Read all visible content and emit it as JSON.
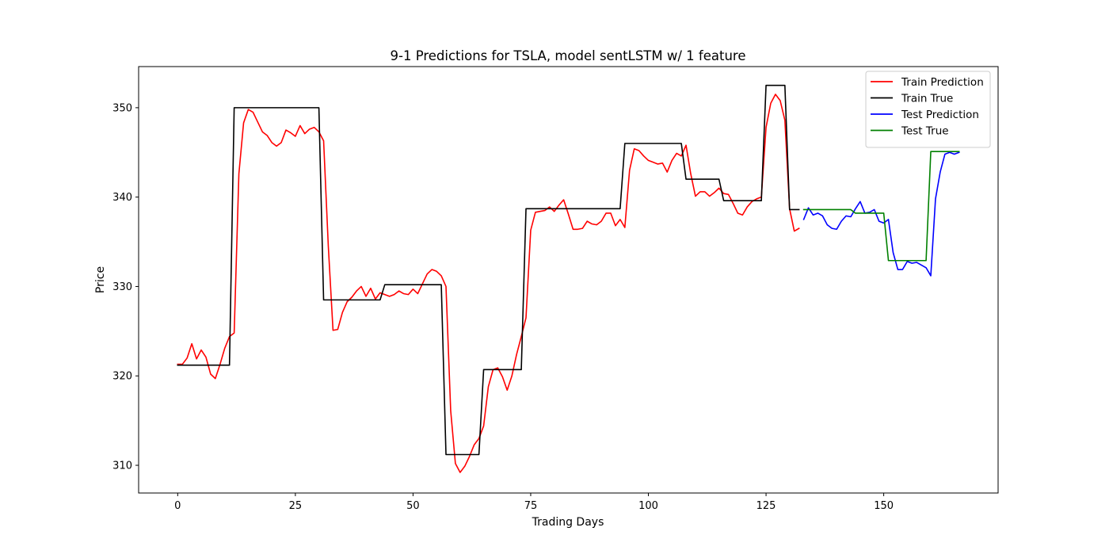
{
  "chart_data": {
    "type": "line",
    "title": "9-1 Predictions for TSLA, model sentLSTM w/ 1 feature",
    "xlabel": "Trading Days",
    "ylabel": "Price",
    "xlim": [
      -8.3,
      174.3
    ],
    "ylim": [
      306.9,
      354.6
    ],
    "xticks": [
      0,
      25,
      50,
      75,
      100,
      125,
      150
    ],
    "yticks": [
      310,
      320,
      330,
      340,
      350
    ],
    "grid": false,
    "legend_position": "top-right",
    "series": [
      {
        "name": "Train Prediction",
        "color": "#ff0000",
        "x_start": 0,
        "values": [
          321.3,
          321.3,
          322.0,
          323.6,
          321.9,
          322.9,
          322.1,
          320.2,
          319.7,
          321.3,
          323.1,
          324.4,
          324.8,
          342.6,
          348.3,
          349.8,
          349.5,
          348.4,
          347.3,
          346.9,
          346.1,
          345.7,
          346.1,
          347.5,
          347.2,
          346.8,
          348.0,
          347.1,
          347.6,
          347.8,
          347.3,
          346.3,
          334.5,
          325.1,
          325.2,
          327.1,
          328.3,
          328.8,
          329.5,
          330.0,
          328.9,
          329.8,
          328.6,
          329.3,
          329.1,
          328.9,
          329.1,
          329.5,
          329.2,
          329.1,
          329.7,
          329.2,
          330.3,
          331.4,
          331.9,
          331.7,
          331.2,
          330.0,
          316.1,
          310.2,
          309.2,
          309.9,
          311.0,
          312.3,
          313.0,
          314.4,
          318.8,
          320.7,
          320.9,
          319.9,
          318.4,
          320.0,
          322.4,
          324.4,
          326.5,
          336.3,
          338.3,
          338.4,
          338.5,
          338.9,
          338.4,
          339.1,
          339.7,
          338.1,
          336.4,
          336.4,
          336.5,
          337.3,
          337.0,
          336.9,
          337.3,
          338.2,
          338.2,
          336.8,
          337.5,
          336.6,
          343.0,
          345.4,
          345.2,
          344.6,
          344.1,
          343.9,
          343.7,
          343.8,
          342.8,
          344.1,
          344.9,
          344.6,
          345.8,
          342.6,
          340.1,
          340.6,
          340.6,
          340.1,
          340.5,
          341.0,
          340.4,
          340.3,
          339.3,
          338.2,
          338.0,
          338.9,
          339.5,
          339.8,
          340.0,
          347.8,
          350.5,
          351.5,
          350.8,
          348.6,
          338.7,
          336.2,
          336.5
        ]
      },
      {
        "name": "Train True",
        "color": "#000000",
        "x_start": 0,
        "values": [
          321.2,
          321.2,
          321.2,
          321.2,
          321.2,
          321.2,
          321.2,
          321.2,
          321.2,
          321.2,
          321.2,
          321.2,
          350.0,
          350.0,
          350.0,
          350.0,
          350.0,
          350.0,
          350.0,
          350.0,
          350.0,
          350.0,
          350.0,
          350.0,
          350.0,
          350.0,
          350.0,
          350.0,
          350.0,
          350.0,
          350.0,
          328.5,
          328.5,
          328.5,
          328.5,
          328.5,
          328.5,
          328.5,
          328.5,
          328.5,
          328.5,
          328.5,
          328.5,
          328.5,
          330.2,
          330.2,
          330.2,
          330.2,
          330.2,
          330.2,
          330.2,
          330.2,
          330.2,
          330.2,
          330.2,
          330.2,
          330.2,
          311.2,
          311.2,
          311.2,
          311.2,
          311.2,
          311.2,
          311.2,
          311.2,
          320.7,
          320.7,
          320.7,
          320.7,
          320.7,
          320.7,
          320.7,
          320.7,
          320.7,
          338.7,
          338.7,
          338.7,
          338.7,
          338.7,
          338.7,
          338.7,
          338.7,
          338.7,
          338.7,
          338.7,
          338.7,
          338.7,
          338.7,
          338.7,
          338.7,
          338.7,
          338.7,
          338.7,
          338.7,
          338.7,
          346.0,
          346.0,
          346.0,
          346.0,
          346.0,
          346.0,
          346.0,
          346.0,
          346.0,
          346.0,
          346.0,
          346.0,
          346.0,
          342.0,
          342.0,
          342.0,
          342.0,
          342.0,
          342.0,
          342.0,
          342.0,
          339.6,
          339.6,
          339.6,
          339.6,
          339.6,
          339.6,
          339.6,
          339.6,
          339.6,
          352.5,
          352.5,
          352.5,
          352.5,
          352.5,
          338.6,
          338.6,
          338.6
        ]
      },
      {
        "name": "Test Prediction",
        "color": "#0000ff",
        "x_start": 133,
        "values": [
          337.5,
          338.8,
          338.0,
          338.2,
          337.9,
          336.9,
          336.5,
          336.4,
          337.3,
          337.9,
          337.8,
          338.7,
          339.5,
          338.2,
          338.3,
          338.6,
          337.3,
          337.1,
          337.5,
          333.8,
          331.9,
          331.9,
          332.8,
          332.6,
          332.7,
          332.4,
          332.1,
          331.2,
          339.8,
          342.8,
          344.8,
          345.0,
          344.8,
          345.0
        ]
      },
      {
        "name": "Test True",
        "color": "#008000",
        "x_start": 133,
        "values": [
          338.6,
          338.6,
          338.6,
          338.6,
          338.6,
          338.6,
          338.6,
          338.6,
          338.6,
          338.6,
          338.6,
          338.2,
          338.2,
          338.2,
          338.2,
          338.2,
          338.2,
          338.2,
          332.9,
          332.9,
          332.9,
          332.9,
          332.9,
          332.9,
          332.9,
          332.9,
          332.9,
          345.1,
          345.1,
          345.1,
          345.1,
          345.1,
          345.1,
          345.1
        ]
      }
    ]
  }
}
